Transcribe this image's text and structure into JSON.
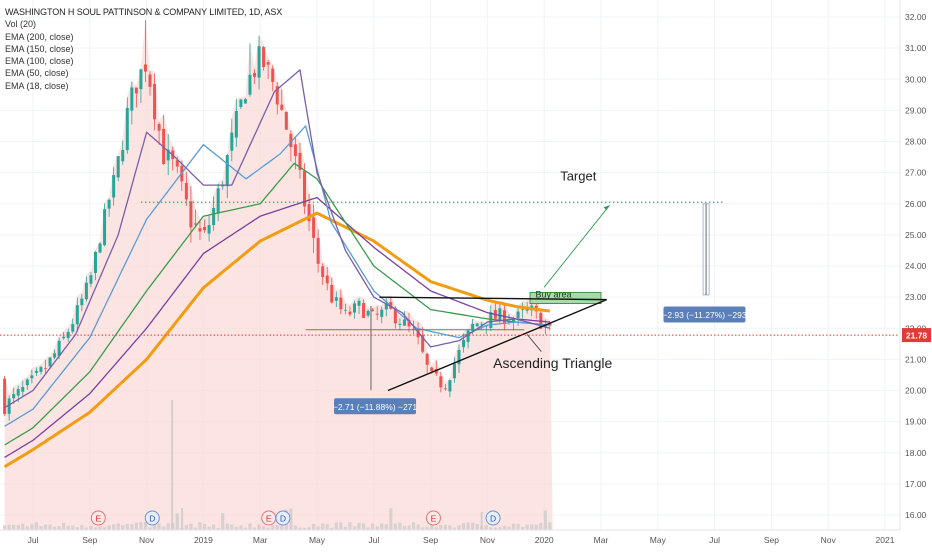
{
  "legend": {
    "title": "WASHINGTON H SOUL PATTINSON & COMPANY LIMITED, 1D, ASX",
    "indicators": [
      "Vol (20)",
      "EMA (200, close)",
      "EMA (150, close)",
      "EMA (100, close)",
      "EMA (50, close)",
      "EMA (18, close)"
    ]
  },
  "colors": {
    "candle_up": "#26a69a",
    "candle_down": "#ef5350",
    "ema200": "#f39c12",
    "ema150": "#7b3fa0",
    "ema100": "#3a9b4b",
    "ema50": "#5b9bd5",
    "ema18": "#7b5ea7",
    "area_fill": "#fadbd8",
    "last_price": "#e53935",
    "target_line": "#2e9e4f",
    "measure": "#5b7fb8"
  },
  "chart_data": {
    "type": "candlestick",
    "x_ticks": [
      "Jul",
      "Sep",
      "Nov",
      "2019",
      "Mar",
      "May",
      "Jul",
      "Sep",
      "Nov",
      "2020",
      "Mar",
      "May",
      "Jul",
      "Sep",
      "Nov",
      "2021"
    ],
    "y_ticks": [
      "16.00",
      "17.00",
      "18.00",
      "19.00",
      "20.00",
      "21.00",
      "22.00",
      "23.00",
      "24.00",
      "25.00",
      "26.00",
      "27.00",
      "28.00",
      "29.00",
      "30.00",
      "31.00",
      "32.00"
    ],
    "ylim": [
      15.5,
      32.3
    ],
    "last_price": "21.78",
    "price_path_months": [
      0,
      0.5,
      1,
      1.5,
      2,
      2.5,
      3,
      3.3,
      3.6,
      4,
      4.3,
      4.6,
      5,
      5.3,
      5.6,
      6,
      6.5,
      7,
      7.5,
      8,
      8.5,
      9,
      9.5,
      10,
      10.5,
      11,
      11.5,
      12,
      12.5,
      13,
      13.5,
      14,
      14.5,
      15,
      15.5,
      16,
      16.5,
      17,
      17.5,
      18,
      18.3
    ],
    "price_path": [
      20.3,
      20.8,
      21.5,
      22.4,
      23.5,
      25.5,
      27.3,
      28.8,
      29.8,
      30.6,
      29.0,
      27.6,
      27.1,
      26.2,
      25.4,
      24.8,
      26.2,
      28.0,
      29.8,
      30.7,
      29.8,
      28.2,
      26.3,
      24.2,
      23.0,
      22.4,
      22.7,
      22.3,
      22.6,
      22.2,
      21.7,
      20.4,
      20.2,
      21.2,
      22.1,
      22.3,
      22.4,
      22.3,
      22.6,
      22.1,
      21.8
    ],
    "ema_series": [
      {
        "name": "EMA (200, close)",
        "color_key": "ema200",
        "months": [
          0,
          2,
          4,
          6,
          8,
          10,
          12,
          14,
          16,
          17,
          18.2
        ],
        "values": [
          18.1,
          19.3,
          21.0,
          23.3,
          24.8,
          25.7,
          24.8,
          23.5,
          22.9,
          22.7,
          22.55
        ]
      },
      {
        "name": "EMA (150, close)",
        "color_key": "ema150",
        "months": [
          0,
          2,
          4,
          6,
          8,
          10,
          12,
          14,
          16,
          17,
          18.2
        ],
        "values": [
          18.4,
          19.9,
          22.0,
          24.4,
          25.6,
          26.2,
          24.6,
          23.2,
          22.5,
          22.3,
          22.2
        ]
      },
      {
        "name": "EMA (100, close)",
        "color_key": "ema100",
        "months": [
          0,
          2,
          4,
          6,
          8,
          9.2,
          10,
          12,
          14,
          16,
          17,
          18.2
        ],
        "values": [
          18.8,
          20.6,
          23.2,
          25.6,
          26.0,
          27.3,
          26.8,
          24.0,
          22.6,
          22.3,
          22.2,
          22.1
        ]
      },
      {
        "name": "EMA (50, close)",
        "color_key": "ema50",
        "months": [
          0,
          2,
          4,
          6,
          7.5,
          8.7,
          9.6,
          10.5,
          12,
          13.5,
          15,
          16,
          17,
          18.2
        ],
        "values": [
          19.4,
          21.7,
          25.5,
          27.9,
          26.8,
          27.6,
          28.5,
          25.4,
          23.2,
          22.0,
          21.7,
          22.1,
          22.2,
          22.1
        ]
      },
      {
        "name": "EMA (18, close)",
        "color_key": "ema18",
        "months": [
          0,
          1.5,
          3,
          4,
          5,
          6,
          7,
          8.5,
          9.4,
          10,
          11,
          12,
          13,
          14,
          15,
          16,
          17,
          18.2
        ],
        "values": [
          20.0,
          21.8,
          25.0,
          28.3,
          27.5,
          26.6,
          26.6,
          29.6,
          30.3,
          27.0,
          24.5,
          23.0,
          22.5,
          21.4,
          21.6,
          22.2,
          22.3,
          22.0
        ]
      }
    ],
    "annotations": {
      "target_label": "Target",
      "target_value": 26.05,
      "buy_area_label": "Buy area",
      "buy_area_range": [
        22.92,
        23.15
      ],
      "pattern_label": "Ascending Triangle",
      "measure_left_label": "−2.71 (−11.88%) −271",
      "measure_right_label": "−2.93 (−11.27%) −293",
      "measure_left_range": [
        22.72,
        20.01
      ],
      "measure_right_range": [
        26.0,
        23.07
      ]
    },
    "event_markers": [
      {
        "label": "E",
        "month": 2.3
      },
      {
        "label": "D",
        "month": 4.2
      },
      {
        "label": "E",
        "month": 8.3
      },
      {
        "label": "D",
        "month": 8.8
      },
      {
        "label": "E",
        "month": 14.1
      },
      {
        "label": "D",
        "month": 16.2
      }
    ]
  }
}
